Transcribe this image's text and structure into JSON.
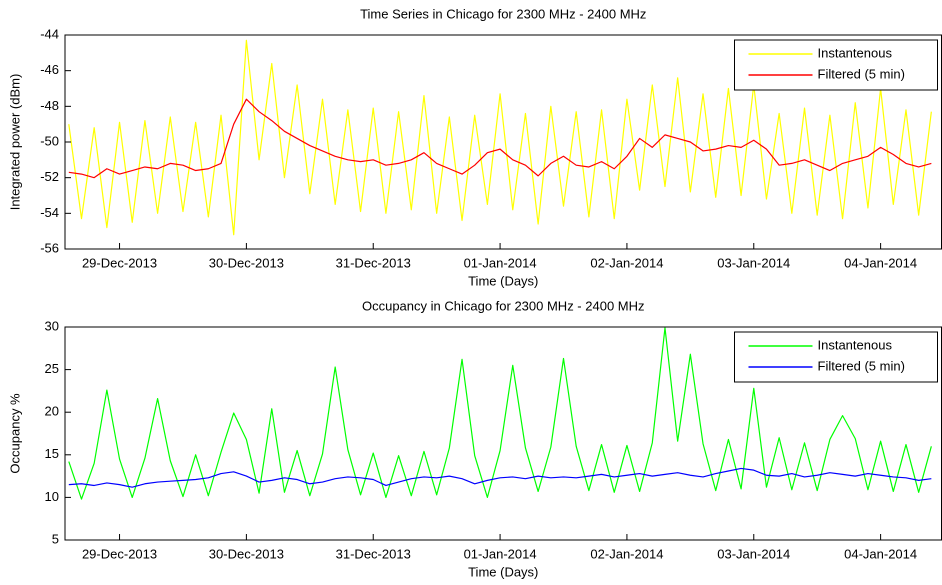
{
  "chart_data": [
    {
      "type": "line",
      "title": "Time Series in Chicago for 2300 MHz - 2400 MHz",
      "x_label": "Time (Days)",
      "y_label": "Integrated power (dBm)",
      "x": [
        735596.6,
        735596.7,
        735596.8,
        735596.9,
        735597.0,
        735597.1,
        735597.2,
        735597.3,
        735597.4,
        735597.5,
        735597.6,
        735597.7,
        735597.8,
        735597.9,
        735598.0,
        735598.1,
        735598.2,
        735598.3,
        735598.4,
        735598.5,
        735598.6,
        735598.7,
        735598.8,
        735598.9,
        735599.0,
        735599.1,
        735599.2,
        735599.3,
        735599.4,
        735599.5,
        735599.6,
        735599.7,
        735599.8,
        735599.9,
        735600.0,
        735600.1,
        735600.2,
        735600.3,
        735600.4,
        735600.5,
        735600.6,
        735600.7,
        735600.8,
        735600.9,
        735601.0,
        735601.1,
        735601.2,
        735601.3,
        735601.4,
        735601.5,
        735601.6,
        735601.7,
        735601.8,
        735601.9,
        735602.0,
        735602.1,
        735602.2,
        735602.3,
        735602.4,
        735602.5,
        735602.6,
        735602.7,
        735602.8,
        735602.9,
        735603.0,
        735603.1,
        735603.2,
        735603.3,
        735603.4
      ],
      "series": [
        {
          "name": "Instantenous",
          "color": "#ffff00",
          "values": [
            -49.0,
            -54.3,
            -49.2,
            -54.8,
            -48.9,
            -54.5,
            -48.8,
            -54.0,
            -48.6,
            -53.9,
            -48.9,
            -54.2,
            -48.5,
            -55.2,
            -44.3,
            -51.0,
            -45.6,
            -52.0,
            -46.8,
            -52.9,
            -47.6,
            -53.5,
            -48.2,
            -53.9,
            -48.1,
            -54.0,
            -48.3,
            -53.8,
            -47.4,
            -54.0,
            -48.6,
            -54.4,
            -48.5,
            -53.5,
            -47.3,
            -53.8,
            -48.4,
            -54.6,
            -48.0,
            -53.6,
            -48.3,
            -54.2,
            -48.2,
            -54.3,
            -47.6,
            -52.7,
            -46.8,
            -52.5,
            -46.4,
            -52.8,
            -47.3,
            -53.1,
            -47.0,
            -53.0,
            -46.8,
            -53.2,
            -48.4,
            -54.0,
            -48.1,
            -54.1,
            -48.5,
            -54.3,
            -47.8,
            -53.7,
            -47.0,
            -53.5,
            -48.2,
            -54.1,
            -48.3
          ]
        },
        {
          "name": "Filtered (5 min)",
          "color": "#ff0000",
          "values": [
            -51.7,
            -51.8,
            -52.0,
            -51.5,
            -51.8,
            -51.6,
            -51.4,
            -51.5,
            -51.2,
            -51.3,
            -51.6,
            -51.5,
            -51.2,
            -49.0,
            -47.6,
            -48.3,
            -48.8,
            -49.4,
            -49.8,
            -50.2,
            -50.5,
            -50.8,
            -51.0,
            -51.1,
            -51.0,
            -51.3,
            -51.2,
            -51.0,
            -50.6,
            -51.2,
            -51.5,
            -51.8,
            -51.3,
            -50.6,
            -50.4,
            -51.0,
            -51.3,
            -51.9,
            -51.2,
            -50.8,
            -51.3,
            -51.4,
            -51.1,
            -51.5,
            -50.8,
            -49.8,
            -50.3,
            -49.6,
            -49.8,
            -50.0,
            -50.5,
            -50.4,
            -50.2,
            -50.3,
            -49.9,
            -50.4,
            -51.3,
            -51.2,
            -51.0,
            -51.3,
            -51.6,
            -51.2,
            -51.0,
            -50.8,
            -50.3,
            -50.7,
            -51.2,
            -51.4,
            -51.2
          ]
        }
      ],
      "xlim": [
        735596.57,
        735603.48
      ],
      "xticks": [
        {
          "value": 735597,
          "label": "29-Dec-2013"
        },
        {
          "value": 735598,
          "label": "30-Dec-2013"
        },
        {
          "value": 735599,
          "label": "31-Dec-2013"
        },
        {
          "value": 735600,
          "label": "01-Jan-2014"
        },
        {
          "value": 735601,
          "label": "02-Jan-2014"
        },
        {
          "value": 735602,
          "label": "03-Jan-2014"
        },
        {
          "value": 735603,
          "label": "04-Jan-2014"
        }
      ],
      "ylim": [
        -56,
        -44
      ],
      "yticks": [
        -56,
        -54,
        -52,
        -50,
        -48,
        -46,
        -44
      ],
      "legend": "upper right"
    },
    {
      "type": "line",
      "title": "Occupancy in Chicago for 2300 MHz - 2400 MHz",
      "x_label": "Time (Days)",
      "y_label": "Occupancy %",
      "x": [
        735596.6,
        735596.7,
        735596.8,
        735596.9,
        735597.0,
        735597.1,
        735597.2,
        735597.3,
        735597.4,
        735597.5,
        735597.6,
        735597.7,
        735597.8,
        735597.9,
        735598.0,
        735598.1,
        735598.2,
        735598.3,
        735598.4,
        735598.5,
        735598.6,
        735598.7,
        735598.8,
        735598.9,
        735599.0,
        735599.1,
        735599.2,
        735599.3,
        735599.4,
        735599.5,
        735599.6,
        735599.7,
        735599.8,
        735599.9,
        735600.0,
        735600.1,
        735600.2,
        735600.3,
        735600.4,
        735600.5,
        735600.6,
        735600.7,
        735600.8,
        735600.9,
        735601.0,
        735601.1,
        735601.2,
        735601.3,
        735601.4,
        735601.5,
        735601.6,
        735601.7,
        735601.8,
        735601.9,
        735602.0,
        735602.1,
        735602.2,
        735602.3,
        735602.4,
        735602.5,
        735602.6,
        735602.7,
        735602.8,
        735602.9,
        735603.0,
        735603.1,
        735603.2,
        735603.3,
        735603.4
      ],
      "series": [
        {
          "name": "Instantenous",
          "color": "#00ff00",
          "values": [
            14.2,
            9.8,
            14.0,
            22.6,
            14.5,
            10.0,
            14.6,
            21.6,
            14.3,
            10.1,
            15.0,
            10.2,
            15.3,
            19.9,
            16.8,
            10.5,
            20.4,
            10.6,
            15.5,
            10.2,
            15.1,
            25.3,
            15.6,
            10.3,
            15.2,
            10.0,
            14.9,
            10.2,
            15.4,
            10.3,
            15.8,
            26.2,
            14.9,
            10.0,
            15.5,
            25.5,
            15.8,
            10.7,
            15.9,
            26.3,
            16.0,
            10.8,
            16.2,
            10.6,
            16.1,
            10.7,
            16.4,
            29.9,
            16.6,
            26.8,
            16.3,
            10.8,
            16.8,
            11.0,
            22.8,
            11.2,
            17.0,
            10.9,
            16.4,
            10.8,
            16.8,
            19.6,
            16.9,
            10.9,
            16.6,
            10.7,
            16.2,
            10.6,
            16.0
          ]
        },
        {
          "name": "Filtered (5 min)",
          "color": "#0000ff",
          "values": [
            11.5,
            11.6,
            11.4,
            11.7,
            11.5,
            11.2,
            11.6,
            11.8,
            11.9,
            12.0,
            12.1,
            12.3,
            12.8,
            13.0,
            12.5,
            11.8,
            12.0,
            12.3,
            12.1,
            11.6,
            11.8,
            12.2,
            12.4,
            12.3,
            12.1,
            11.4,
            11.8,
            12.2,
            12.4,
            12.3,
            12.5,
            12.2,
            11.6,
            12.0,
            12.3,
            12.4,
            12.2,
            12.5,
            12.3,
            12.4,
            12.3,
            12.5,
            12.7,
            12.4,
            12.6,
            12.8,
            12.5,
            12.7,
            12.9,
            12.6,
            12.4,
            12.8,
            13.1,
            13.4,
            13.2,
            12.6,
            12.5,
            12.8,
            12.4,
            12.6,
            12.9,
            12.7,
            12.5,
            12.8,
            12.6,
            12.4,
            12.3,
            12.0,
            12.2
          ]
        }
      ],
      "xlim": [
        735596.57,
        735603.48
      ],
      "xticks": [
        {
          "value": 735597,
          "label": "29-Dec-2013"
        },
        {
          "value": 735598,
          "label": "30-Dec-2013"
        },
        {
          "value": 735599,
          "label": "31-Dec-2013"
        },
        {
          "value": 735600,
          "label": "01-Jan-2014"
        },
        {
          "value": 735601,
          "label": "02-Jan-2014"
        },
        {
          "value": 735602,
          "label": "03-Jan-2014"
        },
        {
          "value": 735603,
          "label": "04-Jan-2014"
        }
      ],
      "ylim": [
        5,
        30
      ],
      "yticks": [
        5,
        10,
        15,
        20,
        25,
        30
      ],
      "legend": "upper right"
    }
  ]
}
